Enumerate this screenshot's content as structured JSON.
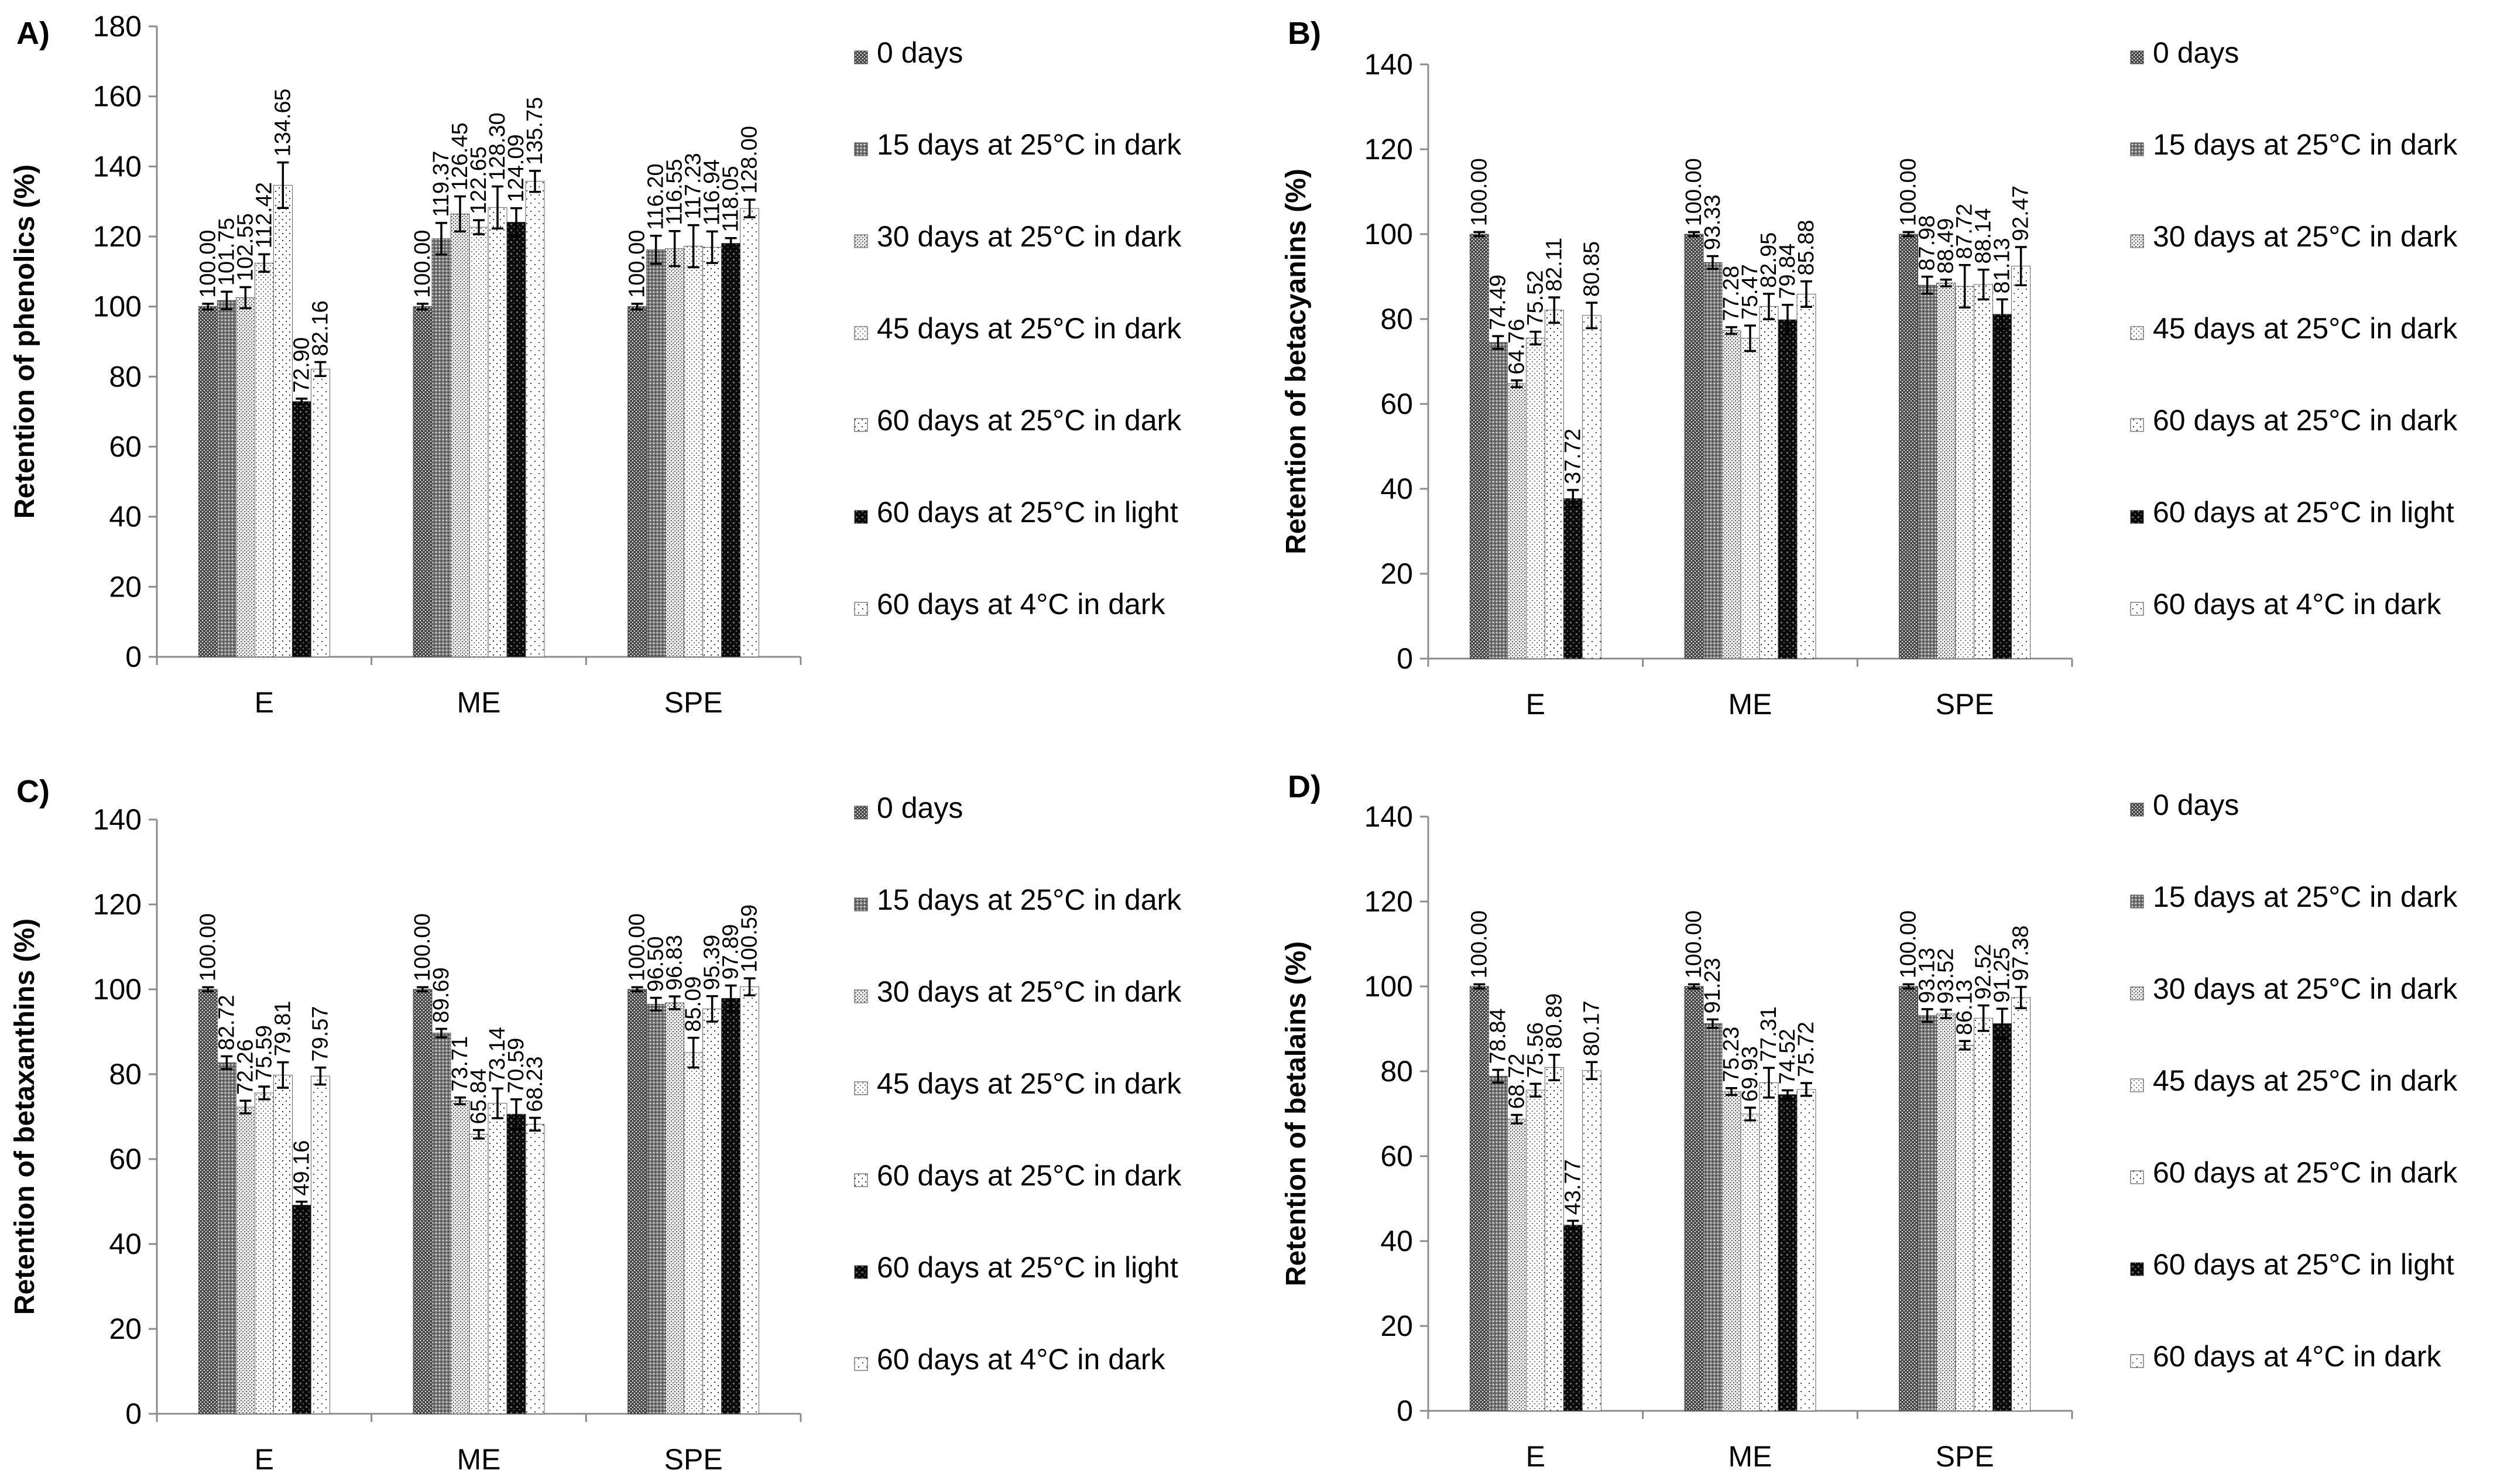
{
  "chart_data": [
    {
      "type": "bar",
      "panel": "A)",
      "title": "",
      "xlabel": "",
      "ylabel": "Retention of phenolics (%)",
      "ylim": [
        0,
        180
      ],
      "yticks": [
        0,
        20,
        40,
        60,
        80,
        100,
        120,
        140,
        160,
        180
      ],
      "categories": [
        "E",
        "ME",
        "SPE"
      ],
      "legend_position": "right",
      "series": [
        {
          "name": "0 days",
          "values": [
            100.0,
            100.0,
            100.0
          ],
          "errors": [
            0.8,
            0.8,
            0.8
          ],
          "labels": [
            "100.00",
            "100.00",
            "100.00"
          ]
        },
        {
          "name": "15 days at 25°C in dark",
          "values": [
            101.75,
            119.37,
            116.2
          ],
          "errors": [
            2.5,
            4.5,
            4.0
          ],
          "labels": [
            "101.75",
            "119.37",
            "116.20"
          ]
        },
        {
          "name": "30 days at 25°C in dark",
          "values": [
            102.55,
            126.45,
            116.55
          ],
          "errors": [
            3.0,
            5.0,
            5.0
          ],
          "labels": [
            "102.55",
            "126.45",
            "116.55"
          ]
        },
        {
          "name": "45 days at 25°C in dark",
          "values": [
            112.42,
            122.65,
            117.23
          ],
          "errors": [
            2.5,
            2.0,
            6.0
          ],
          "labels": [
            "112.42",
            "122.65",
            "117.23"
          ]
        },
        {
          "name": "60 days at 25°C in dark",
          "values": [
            134.65,
            128.3,
            116.94
          ],
          "errors": [
            6.5,
            6.0,
            4.5
          ],
          "labels": [
            "134.65",
            "128.30",
            "116.94"
          ]
        },
        {
          "name": "60 days at 25°C in light",
          "values": [
            72.9,
            124.09,
            118.05
          ],
          "errors": [
            0.8,
            4.0,
            1.5
          ],
          "labels": [
            "72.90",
            "124.09",
            "118.05"
          ]
        },
        {
          "name": "60 days at 4°C in dark",
          "values": [
            82.16,
            135.75,
            128.0
          ],
          "errors": [
            2.0,
            3.0,
            2.5
          ],
          "labels": [
            "82.16",
            "135.75",
            "128.00"
          ]
        }
      ]
    },
    {
      "type": "bar",
      "panel": "B)",
      "title": "",
      "xlabel": "",
      "ylabel": "Retention of betacyanins (%)",
      "ylim": [
        0,
        140
      ],
      "yticks": [
        0,
        20,
        40,
        60,
        80,
        100,
        120,
        140
      ],
      "categories": [
        "E",
        "ME",
        "SPE"
      ],
      "legend_position": "right",
      "series": [
        {
          "name": "0 days",
          "values": [
            100.0,
            100.0,
            100.0
          ],
          "errors": [
            0.5,
            0.5,
            0.5
          ],
          "labels": [
            "100.00",
            "100.00",
            "100.00"
          ]
        },
        {
          "name": "15 days at 25°C in dark",
          "values": [
            74.49,
            93.33,
            87.98
          ],
          "errors": [
            1.5,
            1.5,
            2.0
          ],
          "labels": [
            "74.49",
            "93.33",
            "87.98"
          ]
        },
        {
          "name": "30 days at 25°C in dark",
          "values": [
            64.76,
            77.28,
            88.49
          ],
          "errors": [
            0.8,
            0.8,
            0.8
          ],
          "labels": [
            "64.76",
            "77.28",
            "88.49"
          ]
        },
        {
          "name": "45 days at 25°C in dark",
          "values": [
            75.52,
            75.47,
            87.72
          ],
          "errors": [
            1.5,
            3.0,
            5.0
          ],
          "labels": [
            "75.52",
            "75.47",
            "87.72"
          ]
        },
        {
          "name": "60 days at 25°C in dark",
          "values": [
            82.11,
            82.95,
            88.14
          ],
          "errors": [
            3.0,
            3.0,
            3.5
          ],
          "labels": [
            "82.11",
            "82.95",
            "88.14"
          ]
        },
        {
          "name": "60 days at 25°C in light",
          "values": [
            37.72,
            79.84,
            81.13
          ],
          "errors": [
            2.0,
            3.5,
            3.5
          ],
          "labels": [
            "37.72",
            "79.84",
            "81.13"
          ]
        },
        {
          "name": "60 days at 4°C in dark",
          "values": [
            80.85,
            85.88,
            92.47
          ],
          "errors": [
            3.0,
            3.0,
            4.5
          ],
          "labels": [
            "80.85",
            "85.88",
            "92.47"
          ]
        }
      ]
    },
    {
      "type": "bar",
      "panel": "C)",
      "title": "",
      "xlabel": "",
      "ylabel": "Retention of betaxanthins (%)",
      "ylim": [
        0,
        140
      ],
      "yticks": [
        0,
        20,
        40,
        60,
        80,
        100,
        120,
        140
      ],
      "categories": [
        "E",
        "ME",
        "SPE"
      ],
      "legend_position": "right",
      "series": [
        {
          "name": "0 days",
          "values": [
            100.0,
            100.0,
            100.0
          ],
          "errors": [
            0.5,
            0.5,
            0.5
          ],
          "labels": [
            "100.00",
            "100.00",
            "100.00"
          ]
        },
        {
          "name": "15 days at 25°C in dark",
          "values": [
            82.72,
            89.69,
            96.5
          ],
          "errors": [
            1.5,
            1.0,
            1.5
          ],
          "labels": [
            "82.72",
            "89.69",
            "96.50"
          ]
        },
        {
          "name": "30 days at 25°C in dark",
          "values": [
            72.26,
            73.71,
            96.83
          ],
          "errors": [
            1.5,
            0.8,
            1.5
          ],
          "labels": [
            "72.26",
            "73.71",
            "96.83"
          ]
        },
        {
          "name": "45 days at 25°C in dark",
          "values": [
            75.59,
            65.84,
            85.09
          ],
          "errors": [
            1.5,
            1.0,
            3.5
          ],
          "labels": [
            "75.59",
            "65.84",
            "85.09"
          ]
        },
        {
          "name": "60 days at 25°C in dark",
          "values": [
            79.81,
            73.14,
            95.39
          ],
          "errors": [
            3.0,
            3.5,
            3.0
          ],
          "labels": [
            "79.81",
            "73.14",
            "95.39"
          ]
        },
        {
          "name": "60 days at 25°C in light",
          "values": [
            49.16,
            70.59,
            97.89
          ],
          "errors": [
            0.8,
            3.5,
            3.0
          ],
          "labels": [
            "49.16",
            "70.59",
            "97.89"
          ]
        },
        {
          "name": "60 days at 4°C in dark",
          "values": [
            79.57,
            68.23,
            100.59
          ],
          "errors": [
            2.0,
            1.5,
            2.0
          ],
          "labels": [
            "79.57",
            "68.23",
            "100.59"
          ]
        }
      ]
    },
    {
      "type": "bar",
      "panel": "D)",
      "title": "",
      "xlabel": "",
      "ylabel": "Retention of betalains (%)",
      "ylim": [
        0,
        140
      ],
      "yticks": [
        0,
        20,
        40,
        60,
        80,
        100,
        120,
        140
      ],
      "categories": [
        "E",
        "ME",
        "SPE"
      ],
      "legend_position": "right",
      "series": [
        {
          "name": "0 days",
          "values": [
            100.0,
            100.0,
            100.0
          ],
          "errors": [
            0.5,
            0.5,
            0.5
          ],
          "labels": [
            "100.00",
            "100.00",
            "100.00"
          ]
        },
        {
          "name": "15 days at 25°C in dark",
          "values": [
            78.84,
            91.23,
            93.13
          ],
          "errors": [
            1.5,
            1.0,
            1.5
          ],
          "labels": [
            "78.84",
            "91.23",
            "93.13"
          ]
        },
        {
          "name": "30 days at 25°C in dark",
          "values": [
            68.72,
            75.23,
            93.52
          ],
          "errors": [
            1.0,
            0.8,
            1.0
          ],
          "labels": [
            "68.72",
            "75.23",
            "93.52"
          ]
        },
        {
          "name": "45 days at 25°C in dark",
          "values": [
            75.56,
            69.93,
            86.13
          ],
          "errors": [
            1.5,
            1.5,
            1.0
          ],
          "labels": [
            "75.56",
            "69.93",
            "86.13"
          ]
        },
        {
          "name": "60 days at 25°C in dark",
          "values": [
            80.89,
            77.31,
            92.52
          ],
          "errors": [
            3.0,
            3.5,
            3.0
          ],
          "labels": [
            "80.89",
            "77.31",
            "92.52"
          ]
        },
        {
          "name": "60 days at 25°C in light",
          "values": [
            43.77,
            74.52,
            91.25
          ],
          "errors": [
            1.0,
            1.0,
            3.5
          ],
          "labels": [
            "43.77",
            "74.52",
            "91.25"
          ]
        },
        {
          "name": "60 days at 4°C in dark",
          "values": [
            80.17,
            75.72,
            97.38
          ],
          "errors": [
            2.0,
            1.5,
            2.5
          ],
          "labels": [
            "80.17",
            "75.72",
            "97.38"
          ]
        }
      ]
    }
  ]
}
